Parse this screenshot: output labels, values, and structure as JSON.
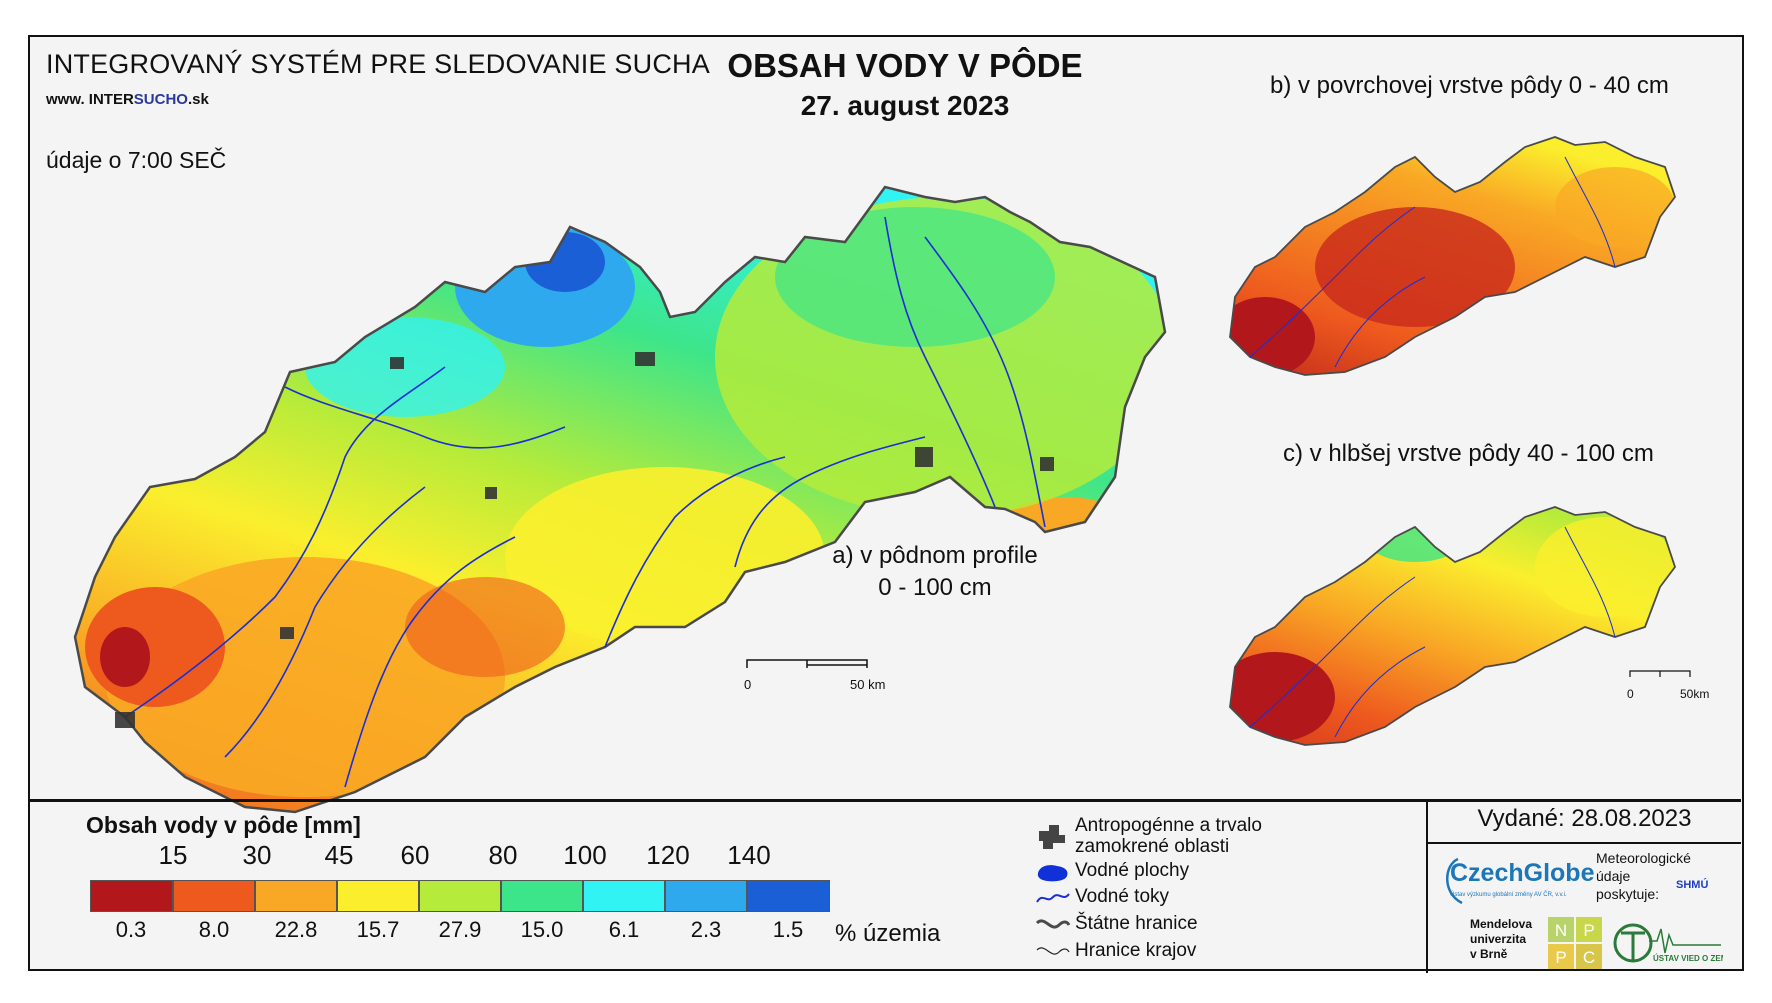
{
  "header": {
    "system_title": "INTEGROVANÝ SYSTÉM PRE SLEDOVANIE SUCHA",
    "website_prefix": "www. INTER",
    "website_highlight": "SUCHO",
    "website_suffix": ".sk",
    "observation_time": "údaje o 7:00 SEČ",
    "main_title": "OBSAH VODY V PÔDE",
    "date": "27. august 2023"
  },
  "maps": {
    "a_label_line1": "a) v pôdnom profile",
    "a_label_line2": "0 - 100 cm",
    "b_label": "b) v povrchovej vrstve pôdy 0 - 40 cm",
    "c_label": "c) v hlbšej vrstve pôdy 40 - 100 cm",
    "scale_main": {
      "start": "0",
      "end": "50 km"
    },
    "scale_small": {
      "start": "0",
      "end": "50km"
    }
  },
  "legend": {
    "title": "Obsah vody v pôde  [mm]",
    "thresholds": [
      "15",
      "30",
      "45",
      "60",
      "80",
      "100",
      "120",
      "140"
    ],
    "classes": [
      {
        "color": "#b2181b",
        "percent": "0.3"
      },
      {
        "color": "#ee5a1e",
        "percent": "8.0"
      },
      {
        "color": "#f9a825",
        "percent": "22.8"
      },
      {
        "color": "#fbef2d",
        "percent": "15.7"
      },
      {
        "color": "#b5eb3a",
        "percent": "27.9"
      },
      {
        "color": "#3de58a",
        "percent": "15.0"
      },
      {
        "color": "#32f3f3",
        "percent": "6.1"
      },
      {
        "color": "#2fa9ee",
        "percent": "2.3"
      },
      {
        "color": "#1b5fd6",
        "percent": "1.5"
      }
    ],
    "percent_label": "% územia"
  },
  "map_legend": {
    "items": [
      {
        "icon": "wetland-icon",
        "line1": "Antropogénne a trvalo",
        "line2": "zamokrené oblasti"
      },
      {
        "icon": "water-body-icon",
        "line1": "Vodné plochy",
        "line2": ""
      },
      {
        "icon": "river-icon",
        "line1": "Vodné toky",
        "line2": ""
      },
      {
        "icon": "state-border-icon",
        "line1": "Štátne hranice",
        "line2": ""
      },
      {
        "icon": "region-border-icon",
        "line1": "Hranice krajov",
        "line2": ""
      }
    ]
  },
  "footer": {
    "issued": "Vydané: 28.08.2023",
    "czechglobe": "CzechGlobe",
    "czechglobe_sub": "Ústav výzkumu globální změny AV ČR, v.v.i.",
    "meteo_line1": "Meteorologické",
    "meteo_line2": "údaje",
    "meteo_line3": "poskytuje:",
    "shmu": "SHMÚ",
    "mendel_line1": "Mendelova",
    "mendel_line2": "univerzita",
    "mendel_line3": "v Brně",
    "nppc": [
      "N",
      "P",
      "P",
      "C"
    ],
    "ustav": "ÚSTAV VIED O ZEMI"
  },
  "colors": {
    "state_border": "#4a4a4a",
    "rivers": "#1a2fd6",
    "wetland": "#444444"
  }
}
